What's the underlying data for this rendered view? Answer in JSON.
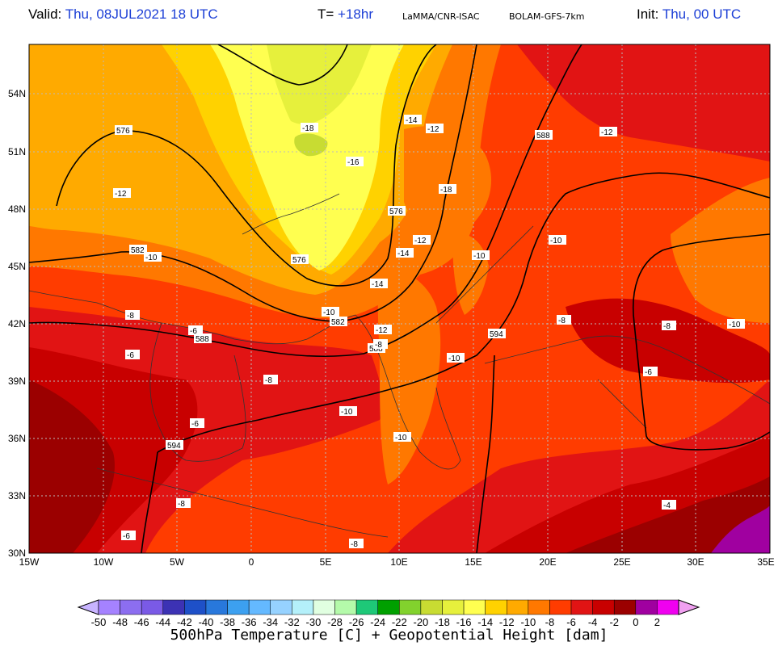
{
  "header": {
    "valid_label": "Valid:",
    "valid_value": "Thu, 08JUL2021   18 UTC",
    "t_label": "T=",
    "t_value": "+18hr",
    "source": "LaMMA/CNR-ISAC",
    "model": "BOLAM-GFS-7km",
    "init_label": "Init:",
    "init_value": "Thu, 00 UTC"
  },
  "axes": {
    "lat_labels": [
      "54N",
      "51N",
      "48N",
      "45N",
      "42N",
      "39N",
      "36N",
      "33N",
      "30N"
    ],
    "lon_labels": [
      "15W",
      "10W",
      "5W",
      "0",
      "5E",
      "10E",
      "15E",
      "20E",
      "25E",
      "30E",
      "35E"
    ]
  },
  "contour_labels": {
    "height": [
      "576",
      "576",
      "576",
      "582",
      "582",
      "588",
      "588",
      "588",
      "594",
      "594"
    ],
    "temperature": [
      "-12",
      "-12",
      "-18",
      "-16",
      "-14",
      "-12",
      "-18",
      "-10",
      "-12",
      "-14",
      "-14",
      "-10",
      "-10",
      "-10",
      "-12",
      "-8",
      "-6",
      "-8",
      "-6",
      "-8",
      "-6",
      "-10",
      "-10",
      "-10",
      "-8",
      "-10",
      "-8",
      "-4",
      "-8",
      "-6",
      "-8",
      "-6"
    ]
  },
  "colorbar": {
    "ticks": [
      "-50",
      "-48",
      "-46",
      "-44",
      "-42",
      "-40",
      "-38",
      "-36",
      "-34",
      "-32",
      "-30",
      "-28",
      "-26",
      "-24",
      "-22",
      "-20",
      "-18",
      "-16",
      "-14",
      "-12",
      "-10",
      "-8",
      "-6",
      "-4",
      "-2",
      "0",
      "2"
    ],
    "colors": [
      "#a582ff",
      "#8c6ef0",
      "#7a5ae6",
      "#3c32b4",
      "#1e50c8",
      "#2878dc",
      "#3ca0f0",
      "#64b9ff",
      "#96d2ff",
      "#b4f0fa",
      "#e1ffe1",
      "#b4faaa",
      "#1ec878",
      "#00a000",
      "#82d22d",
      "#c8dc32",
      "#e6f03c",
      "#ffff50",
      "#ffd200",
      "#ffaa00",
      "#ff7800",
      "#ff3c00",
      "#e11414",
      "#c80000",
      "#9b0000",
      "#a000a0",
      "#f000f0"
    ],
    "title": "500hPa Temperature [C] + Geopotential Height [dam]"
  }
}
